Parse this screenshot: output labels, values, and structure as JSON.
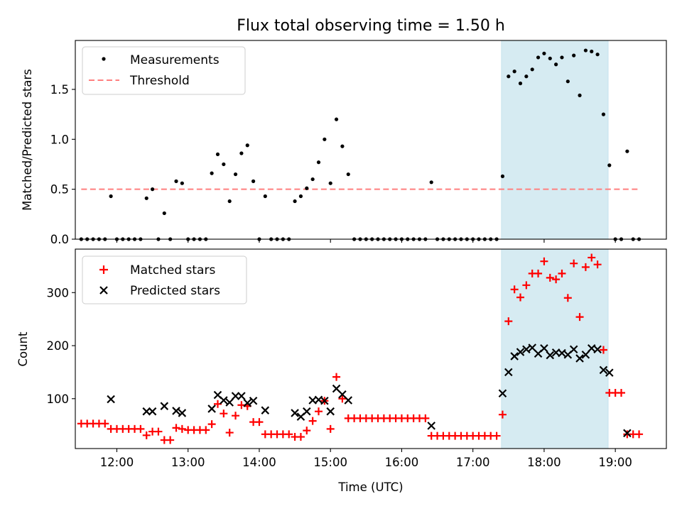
{
  "title": "Flux total observing time = 1.50 h",
  "colors": {
    "measurement": "#000000",
    "threshold": "#ff7f7f",
    "highlight": "#add8e6",
    "matched": "#ff0000",
    "predicted": "#000000"
  },
  "chart_data": [
    {
      "type": "scatter",
      "panel": "top",
      "ylabel": "Matched/Predicted stars",
      "xlabel": "",
      "xlim": [
        "11:25",
        "19:43"
      ],
      "ylim": [
        0,
        1.99
      ],
      "yticks": [
        0.0,
        0.5,
        1.0,
        1.5
      ],
      "ytick_labels": [
        "0.0",
        "0.5",
        "1.0",
        "1.5"
      ],
      "grid": false,
      "legend_position": "upper-left",
      "legend": [
        "Measurements",
        "Threshold"
      ],
      "highlight_span": [
        "17:24",
        "18:54"
      ],
      "threshold": {
        "y": 0.5,
        "x_start": "11:30",
        "x_end": "19:20",
        "style": "dashed"
      },
      "series": [
        {
          "name": "Measurements",
          "marker": "dot",
          "points": [
            [
              "11:30",
              0
            ],
            [
              "11:35",
              0
            ],
            [
              "11:40",
              0
            ],
            [
              "11:45",
              0
            ],
            [
              "11:50",
              0
            ],
            [
              "11:55",
              0.43
            ],
            [
              "12:00",
              0
            ],
            [
              "12:05",
              0
            ],
            [
              "12:10",
              0
            ],
            [
              "12:15",
              0
            ],
            [
              "12:20",
              0
            ],
            [
              "12:25",
              0.41
            ],
            [
              "12:30",
              0.5
            ],
            [
              "12:35",
              0
            ],
            [
              "12:40",
              0.26
            ],
            [
              "12:45",
              0
            ],
            [
              "12:50",
              0.58
            ],
            [
              "12:55",
              0.56
            ],
            [
              "13:00",
              0
            ],
            [
              "13:05",
              0
            ],
            [
              "13:10",
              0
            ],
            [
              "13:15",
              0
            ],
            [
              "13:20",
              0.66
            ],
            [
              "13:25",
              0.85
            ],
            [
              "13:30",
              0.75
            ],
            [
              "13:35",
              0.38
            ],
            [
              "13:40",
              0.65
            ],
            [
              "13:45",
              0.86
            ],
            [
              "13:50",
              0.94
            ],
            [
              "13:55",
              0.58
            ],
            [
              "14:00",
              0
            ],
            [
              "14:05",
              0.43
            ],
            [
              "14:10",
              0
            ],
            [
              "14:15",
              0
            ],
            [
              "14:20",
              0
            ],
            [
              "14:25",
              0
            ],
            [
              "14:30",
              0.38
            ],
            [
              "14:35",
              0.43
            ],
            [
              "14:40",
              0.51
            ],
            [
              "14:45",
              0.6
            ],
            [
              "14:50",
              0.77
            ],
            [
              "14:55",
              1.0
            ],
            [
              "15:00",
              0.56
            ],
            [
              "15:05",
              1.2
            ],
            [
              "15:10",
              0.93
            ],
            [
              "15:15",
              0.65
            ],
            [
              "15:20",
              0
            ],
            [
              "15:25",
              0
            ],
            [
              "15:30",
              0
            ],
            [
              "15:35",
              0
            ],
            [
              "15:40",
              0
            ],
            [
              "15:45",
              0
            ],
            [
              "15:50",
              0
            ],
            [
              "15:55",
              0
            ],
            [
              "16:00",
              0
            ],
            [
              "16:05",
              0
            ],
            [
              "16:10",
              0
            ],
            [
              "16:15",
              0
            ],
            [
              "16:20",
              0
            ],
            [
              "16:25",
              0.57
            ],
            [
              "16:30",
              0
            ],
            [
              "16:35",
              0
            ],
            [
              "16:40",
              0
            ],
            [
              "16:45",
              0
            ],
            [
              "16:50",
              0
            ],
            [
              "16:55",
              0
            ],
            [
              "17:00",
              0
            ],
            [
              "17:05",
              0
            ],
            [
              "17:10",
              0
            ],
            [
              "17:15",
              0
            ],
            [
              "17:20",
              0
            ],
            [
              "17:25",
              0.63
            ],
            [
              "17:30",
              1.63
            ],
            [
              "17:35",
              1.68
            ],
            [
              "17:40",
              1.56
            ],
            [
              "17:45",
              1.63
            ],
            [
              "17:50",
              1.7
            ],
            [
              "17:55",
              1.82
            ],
            [
              "18:00",
              1.86
            ],
            [
              "18:05",
              1.81
            ],
            [
              "18:10",
              1.75
            ],
            [
              "18:15",
              1.82
            ],
            [
              "18:20",
              1.58
            ],
            [
              "18:25",
              1.84
            ],
            [
              "18:30",
              1.44
            ],
            [
              "18:35",
              1.89
            ],
            [
              "18:40",
              1.88
            ],
            [
              "18:45",
              1.85
            ],
            [
              "18:50",
              1.25
            ],
            [
              "18:55",
              0.74
            ],
            [
              "19:00",
              0
            ],
            [
              "19:05",
              0
            ],
            [
              "19:10",
              0.88
            ],
            [
              "19:15",
              0
            ],
            [
              "19:20",
              0
            ]
          ]
        }
      ]
    },
    {
      "type": "scatter",
      "panel": "bottom",
      "ylabel": "Count",
      "xlabel": "Time (UTC)",
      "xlim": [
        "11:25",
        "19:43"
      ],
      "ylim": [
        6,
        382
      ],
      "yticks": [
        100,
        200,
        300
      ],
      "ytick_labels": [
        "100",
        "200",
        "300"
      ],
      "xticks": [
        "12:00",
        "13:00",
        "14:00",
        "15:00",
        "16:00",
        "17:00",
        "18:00",
        "19:00"
      ],
      "xtick_labels": [
        "12:00",
        "13:00",
        "14:00",
        "15:00",
        "16:00",
        "17:00",
        "18:00",
        "19:00"
      ],
      "grid": false,
      "legend_position": "upper-left",
      "legend": [
        "Matched stars",
        "Predicted stars"
      ],
      "highlight_span": [
        "17:24",
        "18:54"
      ],
      "series": [
        {
          "name": "Matched stars",
          "marker": "plus",
          "points": [
            [
              "11:30",
              53
            ],
            [
              "11:35",
              53
            ],
            [
              "11:40",
              53
            ],
            [
              "11:45",
              53
            ],
            [
              "11:50",
              53
            ],
            [
              "11:55",
              43
            ],
            [
              "12:00",
              43
            ],
            [
              "12:05",
              43
            ],
            [
              "12:10",
              43
            ],
            [
              "12:15",
              43
            ],
            [
              "12:20",
              43
            ],
            [
              "12:25",
              31
            ],
            [
              "12:30",
              38
            ],
            [
              "12:35",
              38
            ],
            [
              "12:40",
              22
            ],
            [
              "12:45",
              22
            ],
            [
              "12:50",
              45
            ],
            [
              "12:55",
              43
            ],
            [
              "13:00",
              41
            ],
            [
              "13:05",
              41
            ],
            [
              "13:10",
              41
            ],
            [
              "13:15",
              41
            ],
            [
              "13:20",
              52
            ],
            [
              "13:25",
              90
            ],
            [
              "13:30",
              72
            ],
            [
              "13:35",
              36
            ],
            [
              "13:40",
              68
            ],
            [
              "13:45",
              88
            ],
            [
              "13:50",
              86
            ],
            [
              "13:55",
              56
            ],
            [
              "14:00",
              56
            ],
            [
              "14:05",
              33
            ],
            [
              "14:10",
              33
            ],
            [
              "14:15",
              33
            ],
            [
              "14:20",
              33
            ],
            [
              "14:25",
              33
            ],
            [
              "14:30",
              28
            ],
            [
              "14:35",
              28
            ],
            [
              "14:40",
              40
            ],
            [
              "14:45",
              58
            ],
            [
              "14:50",
              76
            ],
            [
              "14:55",
              96
            ],
            [
              "15:00",
              43
            ],
            [
              "15:05",
              141
            ],
            [
              "15:10",
              100
            ],
            [
              "15:15",
              63
            ],
            [
              "15:20",
              63
            ],
            [
              "15:25",
              63
            ],
            [
              "15:30",
              63
            ],
            [
              "15:35",
              63
            ],
            [
              "15:40",
              63
            ],
            [
              "15:45",
              63
            ],
            [
              "15:50",
              63
            ],
            [
              "15:55",
              63
            ],
            [
              "16:00",
              63
            ],
            [
              "16:05",
              63
            ],
            [
              "16:10",
              63
            ],
            [
              "16:15",
              63
            ],
            [
              "16:20",
              63
            ],
            [
              "16:25",
              30
            ],
            [
              "16:30",
              30
            ],
            [
              "16:35",
              30
            ],
            [
              "16:40",
              30
            ],
            [
              "16:45",
              30
            ],
            [
              "16:50",
              30
            ],
            [
              "16:55",
              30
            ],
            [
              "17:00",
              30
            ],
            [
              "17:05",
              30
            ],
            [
              "17:10",
              30
            ],
            [
              "17:15",
              30
            ],
            [
              "17:20",
              30
            ],
            [
              "17:25",
              70
            ],
            [
              "17:30",
              246
            ],
            [
              "17:35",
              306
            ],
            [
              "17:40",
              291
            ],
            [
              "17:45",
              314
            ],
            [
              "17:50",
              336
            ],
            [
              "17:55",
              336
            ],
            [
              "18:00",
              359
            ],
            [
              "18:05",
              328
            ],
            [
              "18:10",
              325
            ],
            [
              "18:15",
              336
            ],
            [
              "18:20",
              290
            ],
            [
              "18:25",
              355
            ],
            [
              "18:30",
              254
            ],
            [
              "18:35",
              348
            ],
            [
              "18:40",
              366
            ],
            [
              "18:45",
              353
            ],
            [
              "18:50",
              192
            ],
            [
              "18:55",
              111
            ],
            [
              "19:00",
              111
            ],
            [
              "19:05",
              111
            ],
            [
              "19:10",
              33
            ],
            [
              "19:15",
              33
            ],
            [
              "19:20",
              33
            ]
          ]
        },
        {
          "name": "Predicted stars",
          "marker": "x",
          "points": [
            [
              "11:55",
              99
            ],
            [
              "12:25",
              76
            ],
            [
              "12:30",
              76
            ],
            [
              "12:40",
              86
            ],
            [
              "12:50",
              77
            ],
            [
              "12:55",
              73
            ],
            [
              "13:20",
              81
            ],
            [
              "13:25",
              107
            ],
            [
              "13:30",
              97
            ],
            [
              "13:35",
              93
            ],
            [
              "13:40",
              105
            ],
            [
              "13:45",
              105
            ],
            [
              "13:50",
              92
            ],
            [
              "13:55",
              96
            ],
            [
              "14:05",
              78
            ],
            [
              "14:30",
              73
            ],
            [
              "14:35",
              66
            ],
            [
              "14:40",
              76
            ],
            [
              "14:45",
              97
            ],
            [
              "14:50",
              98
            ],
            [
              "14:55",
              96
            ],
            [
              "15:00",
              76
            ],
            [
              "15:05",
              119
            ],
            [
              "15:10",
              108
            ],
            [
              "15:15",
              97
            ],
            [
              "16:25",
              49
            ],
            [
              "17:25",
              110
            ],
            [
              "17:30",
              150
            ],
            [
              "17:35",
              180
            ],
            [
              "17:40",
              188
            ],
            [
              "17:45",
              193
            ],
            [
              "17:50",
              196
            ],
            [
              "17:55",
              185
            ],
            [
              "18:00",
              195
            ],
            [
              "18:05",
              182
            ],
            [
              "18:10",
              187
            ],
            [
              "18:15",
              186
            ],
            [
              "18:20",
              183
            ],
            [
              "18:25",
              193
            ],
            [
              "18:30",
              176
            ],
            [
              "18:35",
              183
            ],
            [
              "18:40",
              195
            ],
            [
              "18:45",
              193
            ],
            [
              "18:50",
              154
            ],
            [
              "18:55",
              149
            ],
            [
              "19:10",
              35
            ]
          ]
        }
      ]
    }
  ]
}
